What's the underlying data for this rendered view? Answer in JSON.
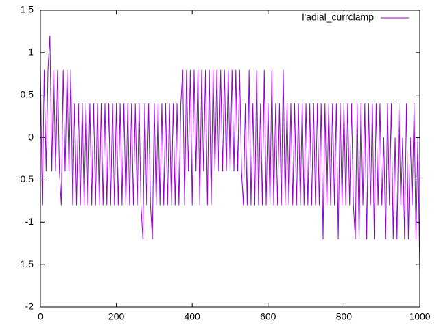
{
  "chart_data": {
    "type": "line",
    "x": [
      0,
      5,
      10,
      15,
      20,
      25,
      30,
      35,
      40,
      45,
      50,
      55,
      60,
      65,
      70,
      75,
      80,
      85,
      90,
      95,
      100,
      105,
      110,
      115,
      120,
      125,
      130,
      135,
      140,
      145,
      150,
      155,
      160,
      165,
      170,
      175,
      180,
      185,
      190,
      195,
      200,
      205,
      210,
      215,
      220,
      225,
      230,
      235,
      240,
      245,
      250,
      255,
      260,
      265,
      270,
      275,
      280,
      285,
      290,
      295,
      300,
      305,
      310,
      315,
      320,
      325,
      330,
      335,
      340,
      345,
      350,
      355,
      360,
      365,
      370,
      375,
      380,
      385,
      390,
      395,
      400,
      405,
      410,
      415,
      420,
      425,
      430,
      435,
      440,
      445,
      450,
      455,
      460,
      465,
      470,
      475,
      480,
      485,
      490,
      495,
      500,
      505,
      510,
      515,
      520,
      525,
      530,
      535,
      540,
      545,
      550,
      555,
      560,
      565,
      570,
      575,
      580,
      585,
      590,
      595,
      600,
      605,
      610,
      615,
      620,
      625,
      630,
      635,
      640,
      645,
      650,
      655,
      660,
      665,
      670,
      675,
      680,
      685,
      690,
      695,
      700,
      705,
      710,
      715,
      720,
      725,
      730,
      735,
      740,
      745,
      750,
      755,
      760,
      765,
      770,
      775,
      780,
      785,
      790,
      795,
      800,
      805,
      810,
      815,
      820,
      825,
      830,
      835,
      840,
      845,
      850,
      855,
      860,
      865,
      870,
      875,
      880,
      885,
      890,
      895,
      900,
      905,
      910,
      915,
      920,
      925,
      930,
      935,
      940,
      945,
      950,
      955,
      960,
      965,
      970,
      975,
      980,
      985,
      990,
      995,
      1000
    ],
    "series": [
      {
        "name": "l'adial_currclamp",
        "color": "#9400d3",
        "values": [
          0.8,
          -0.8,
          0.8,
          -0.4,
          0.8,
          1.2,
          -0.4,
          0.8,
          -0.4,
          0.8,
          -0.4,
          -0.8,
          0.8,
          -0.4,
          0.8,
          -0.4,
          0.8,
          -0.8,
          0.4,
          -0.8,
          0.4,
          -0.8,
          0.4,
          -0.8,
          0.4,
          -0.8,
          0.4,
          -0.8,
          0.4,
          -0.8,
          0.4,
          -0.8,
          0.4,
          -0.8,
          0.4,
          -0.8,
          0.4,
          -0.8,
          0.4,
          -0.8,
          0.4,
          -0.8,
          0.4,
          -0.8,
          0.4,
          -0.8,
          0.4,
          -0.8,
          0.4,
          -0.8,
          0.4,
          -0.8,
          0.4,
          -0.8,
          -1.2,
          0.4,
          -0.8,
          0.4,
          -0.8,
          -1.2,
          0.4,
          -0.8,
          0.4,
          -0.8,
          0.4,
          -0.8,
          0.4,
          -0.8,
          0.4,
          -0.8,
          0.4,
          -0.8,
          0.4,
          -0.8,
          0.4,
          0.8,
          -0.8,
          0.8,
          -0.4,
          0.8,
          -0.8,
          0.8,
          -0.4,
          0.8,
          -0.8,
          0.8,
          -0.4,
          0.8,
          -0.8,
          0.8,
          -0.8,
          0.8,
          -0.4,
          0.8,
          -0.4,
          0.8,
          -0.4,
          0.8,
          -0.4,
          0.8,
          -0.4,
          0.8,
          -0.4,
          0.8,
          -0.4,
          0.8,
          -0.4,
          -0.8,
          0.4,
          -0.8,
          0.8,
          -0.8,
          0.4,
          -0.8,
          0.8,
          -0.8,
          0.4,
          -0.8,
          0.8,
          -0.8,
          0.4,
          -0.8,
          0.8,
          -0.8,
          0.4,
          -0.8,
          0.4,
          -0.8,
          0.8,
          -0.8,
          0.4,
          -0.8,
          0.4,
          -0.8,
          0.4,
          -0.8,
          0.4,
          -0.8,
          0.4,
          -0.8,
          0.4,
          -0.8,
          0.4,
          -0.8,
          0.4,
          -0.8,
          0.4,
          -0.8,
          0.4,
          -1.2,
          0.4,
          -0.8,
          0.4,
          -0.8,
          0.4,
          -0.8,
          0.4,
          -1.2,
          0.4,
          -0.8,
          0.4,
          -0.8,
          0.4,
          -0.8,
          0.4,
          -0.8,
          -1.2,
          0.4,
          -1.2,
          0.4,
          -0.8,
          0.4,
          -1.2,
          0.4,
          -0.8,
          0.4,
          -1.2,
          0.4,
          -0.8,
          0.4,
          -0.8,
          0,
          -1.2,
          0.4,
          -0.8,
          0.4,
          -1.2,
          0,
          -1.2,
          0.4,
          -0.8,
          0,
          -1.2,
          0.4,
          -1.2,
          0,
          -0.8,
          0.4,
          -1.2,
          0,
          -1.6
        ]
      }
    ],
    "xlim": [
      0,
      1000
    ],
    "xticks": [
      0,
      200,
      400,
      600,
      800,
      1000
    ],
    "ylim": [
      -2,
      1.5
    ],
    "yticks": [
      -2,
      -1.5,
      -1,
      -0.5,
      0,
      0.5,
      1,
      1.5
    ],
    "legend": "top-right"
  }
}
